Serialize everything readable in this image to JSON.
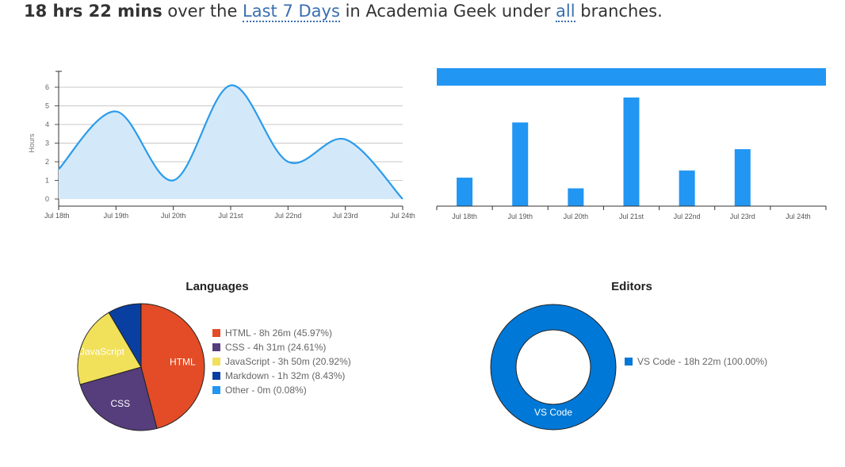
{
  "summary": {
    "duration": "18 hrs 22 mins",
    "text1": " over the ",
    "range_link": "Last 7 Days",
    "text2": " in Academia Geek under ",
    "branch_link": "all",
    "text3": " branches."
  },
  "chart_data": [
    {
      "type": "area",
      "categories": [
        "Jul 18th",
        "Jul 19th",
        "Jul 20th",
        "Jul 21st",
        "Jul 22nd",
        "Jul 23rd",
        "Jul 24th"
      ],
      "values": [
        1.6,
        4.7,
        1.0,
        6.1,
        2.0,
        3.2,
        0.0
      ],
      "ylabel": "Hours",
      "yticks": [
        0,
        1,
        2,
        3,
        4,
        5,
        6
      ],
      "ylim": [
        0,
        6.5
      ],
      "grid": true,
      "color": "#2b9bea",
      "fill": "#d3e9fa"
    },
    {
      "type": "bar",
      "categories": [
        "Jul 18th",
        "Jul 19th",
        "Jul 20th",
        "Jul 21st",
        "Jul 22nd",
        "Jul 23rd",
        "Jul 24th"
      ],
      "values": [
        1.6,
        4.7,
        1.0,
        6.1,
        2.0,
        3.2,
        0.0
      ],
      "ylim": [
        0,
        6.2
      ],
      "color": "#2196f3",
      "legend_bar_color": "#2196f3"
    },
    {
      "type": "pie",
      "title": "Languages",
      "slices": [
        {
          "label": "HTML",
          "legend": "HTML - 8h 26m (45.97%)",
          "value": 45.97,
          "color": "#e34c26"
        },
        {
          "label": "CSS",
          "legend": "CSS - 4h 31m (24.61%)",
          "value": 24.61,
          "color": "#563d7c"
        },
        {
          "label": "JavaScript",
          "legend": "JavaScript - 3h 50m (20.92%)",
          "value": 20.92,
          "color": "#f1e05a"
        },
        {
          "label": "",
          "legend": "Markdown - 1h 32m (8.43%)",
          "value": 8.43,
          "color": "#083fa1"
        },
        {
          "label": "",
          "legend": "Other - 0m (0.08%)",
          "value": 0.08,
          "color": "#2196f3"
        }
      ]
    },
    {
      "type": "pie",
      "title": "Editors",
      "donut": true,
      "slices": [
        {
          "label": "VS Code",
          "legend": "VS Code - 18h 22m (100.00%)",
          "value": 100.0,
          "color": "#0078d7"
        }
      ]
    }
  ]
}
